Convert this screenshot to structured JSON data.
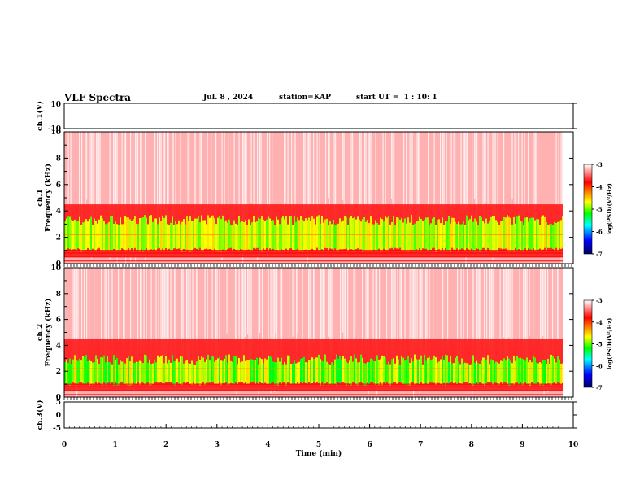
{
  "header": {
    "title": "VLF Spectra",
    "date": "Jul. 8 , 2024",
    "station": "station=KAP",
    "start": "start UT =  1 : 10: 1"
  },
  "chart_data": [
    {
      "type": "line",
      "panel": "ch1-waveform",
      "ylabel": "ch.1(V)",
      "ylim": [
        -10,
        10
      ],
      "yticks": [
        "10",
        "-10"
      ],
      "xlim": [
        0,
        10
      ]
    },
    {
      "type": "heatmap",
      "panel": "ch1-spectrogram",
      "ylabel": "ch.1\nFrequency (kHz)",
      "ylabel_line1": "ch.1",
      "ylabel_line2": "Frequency (kHz)",
      "yticks": [
        "0",
        "2",
        "4",
        "6",
        "8",
        "10"
      ],
      "ylim": [
        0,
        10
      ],
      "xlim": [
        0,
        9.8
      ],
      "colorbar": {
        "label": "log(PSD)(V²/Hz)",
        "ticks": [
          "-3",
          "-4",
          "-5",
          "-6",
          "-7"
        ],
        "range": [
          -7,
          -3
        ],
        "colors": [
          "#ffffff",
          "#ff0000",
          "#ffff00",
          "#00ff00",
          "#00ffff",
          "#0000ff",
          "#000066"
        ]
      }
    },
    {
      "type": "heatmap",
      "panel": "ch2-spectrogram",
      "ylabel_line1": "ch.2",
      "ylabel_line2": "Frequency (kHz)",
      "yticks": [
        "0",
        "2",
        "4",
        "6",
        "8",
        "10"
      ],
      "ylim": [
        0,
        10
      ],
      "xlim": [
        0,
        9.8
      ],
      "colorbar": {
        "label": "log(PSD)(V²/Hz)",
        "ticks": [
          "-3",
          "-4",
          "-5",
          "-6",
          "-7"
        ],
        "range": [
          -7,
          -3
        ]
      }
    },
    {
      "type": "line",
      "panel": "ch3-waveform",
      "ylabel": "ch.3(V)",
      "ylim": [
        -5,
        5
      ],
      "yticks": [
        "5",
        "0",
        "-5"
      ],
      "xlim": [
        0,
        10
      ],
      "xticks": [
        "0",
        "1",
        "2",
        "3",
        "4",
        "5",
        "6",
        "7",
        "8",
        "9",
        "10"
      ],
      "xlabel": "Time (min)"
    }
  ]
}
